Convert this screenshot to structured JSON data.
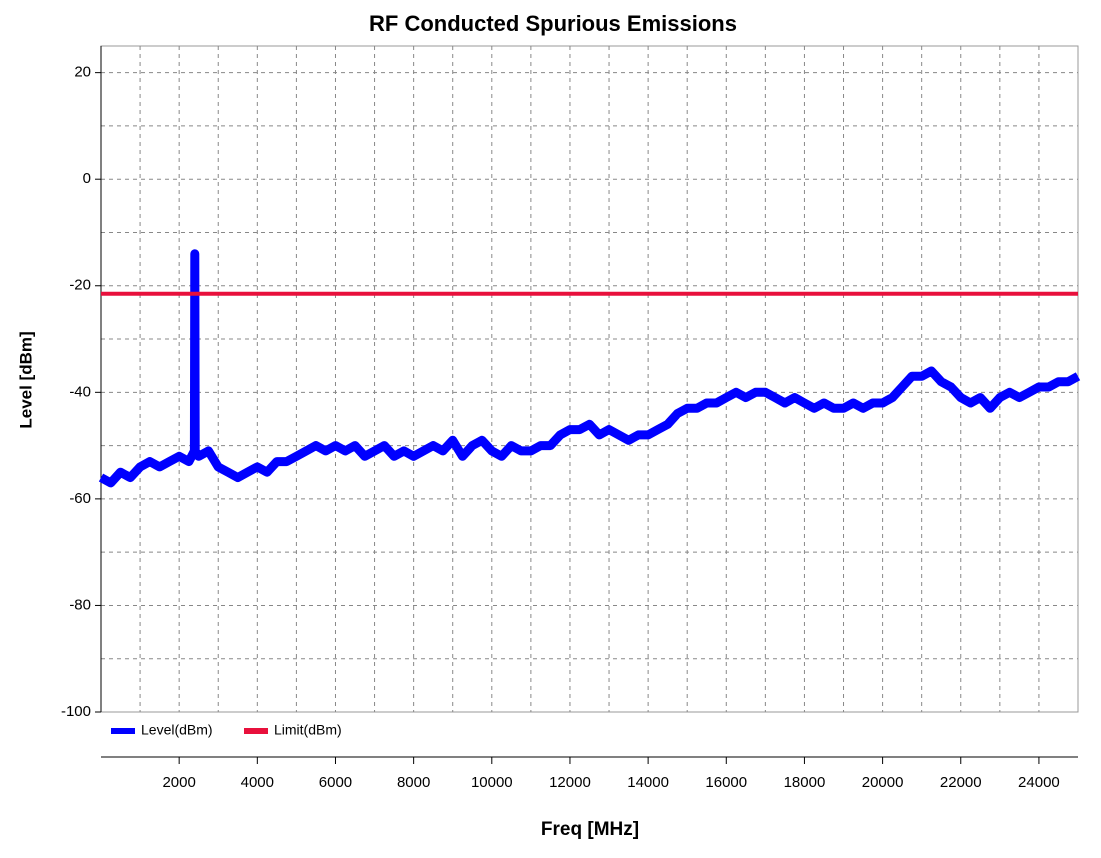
{
  "chart_data": {
    "type": "line",
    "title": "RF Conducted Spurious  Emissions",
    "x_label": "Freq [MHz]",
    "y_label": "Level [dBm]",
    "xlim": [
      0,
      25000
    ],
    "ylim": [
      -100,
      25
    ],
    "xticks": [
      2000,
      4000,
      6000,
      8000,
      10000,
      12000,
      14000,
      16000,
      18000,
      20000,
      22000,
      24000
    ],
    "yticks": [
      -100,
      -80,
      -60,
      -40,
      -20,
      0,
      20
    ],
    "x_grid": [
      1000,
      2000,
      3000,
      4000,
      5000,
      6000,
      7000,
      8000,
      9000,
      10000,
      11000,
      12000,
      13000,
      14000,
      15000,
      16000,
      17000,
      18000,
      19000,
      20000,
      21000,
      22000,
      23000,
      24000
    ],
    "y_grid": [
      -90,
      -80,
      -70,
      -60,
      -50,
      -40,
      -30,
      -20,
      -10,
      0,
      10,
      20
    ],
    "grid": true,
    "legend": "bottom-left",
    "series": [
      {
        "name": "Level(dBm)",
        "color": "#0000ff",
        "x": [
          0,
          250,
          500,
          750,
          1000,
          1250,
          1500,
          1750,
          2000,
          2250,
          2390,
          2400,
          2410,
          2500,
          2750,
          3000,
          3250,
          3500,
          3750,
          4000,
          4250,
          4500,
          4750,
          5000,
          5250,
          5500,
          5750,
          6000,
          6250,
          6500,
          6750,
          7000,
          7250,
          7500,
          7750,
          8000,
          8250,
          8500,
          8750,
          9000,
          9250,
          9500,
          9750,
          10000,
          10250,
          10500,
          10750,
          11000,
          11250,
          11500,
          11750,
          12000,
          12250,
          12500,
          12750,
          13000,
          13250,
          13500,
          13750,
          14000,
          14250,
          14500,
          14750,
          15000,
          15250,
          15500,
          15750,
          16000,
          16250,
          16500,
          16750,
          17000,
          17250,
          17500,
          17750,
          18000,
          18250,
          18500,
          18750,
          19000,
          19250,
          19500,
          19750,
          20000,
          20250,
          20500,
          20750,
          21000,
          21250,
          21500,
          21750,
          22000,
          22250,
          22500,
          22750,
          23000,
          23250,
          23500,
          23750,
          24000,
          24250,
          24500,
          24750,
          25000
        ],
        "values": [
          -56,
          -57,
          -55,
          -56,
          -54,
          -53,
          -54,
          -53,
          -52,
          -53,
          -51,
          -14,
          -51,
          -52,
          -51,
          -54,
          -55,
          -56,
          -55,
          -54,
          -55,
          -53,
          -53,
          -52,
          -51,
          -50,
          -51,
          -50,
          -51,
          -50,
          -52,
          -51,
          -50,
          -52,
          -51,
          -52,
          -51,
          -50,
          -51,
          -49,
          -52,
          -50,
          -49,
          -51,
          -52,
          -50,
          -51,
          -51,
          -50,
          -50,
          -48,
          -47,
          -47,
          -46,
          -48,
          -47,
          -48,
          -49,
          -48,
          -48,
          -47,
          -46,
          -44,
          -43,
          -43,
          -42,
          -42,
          -41,
          -40,
          -41,
          -40,
          -40,
          -41,
          -42,
          -41,
          -42,
          -43,
          -42,
          -43,
          -43,
          -42,
          -43,
          -42,
          -42,
          -41,
          -39,
          -37,
          -37,
          -36,
          -38,
          -39,
          -41,
          -42,
          -41,
          -43,
          -41,
          -40,
          -41,
          -40,
          -39,
          -39,
          -38,
          -38,
          -37
        ]
      },
      {
        "name": "Limit(dBm)",
        "color": "#e8103c",
        "x": [
          0,
          25000
        ],
        "values": [
          -21.5,
          -21.5
        ]
      }
    ]
  }
}
